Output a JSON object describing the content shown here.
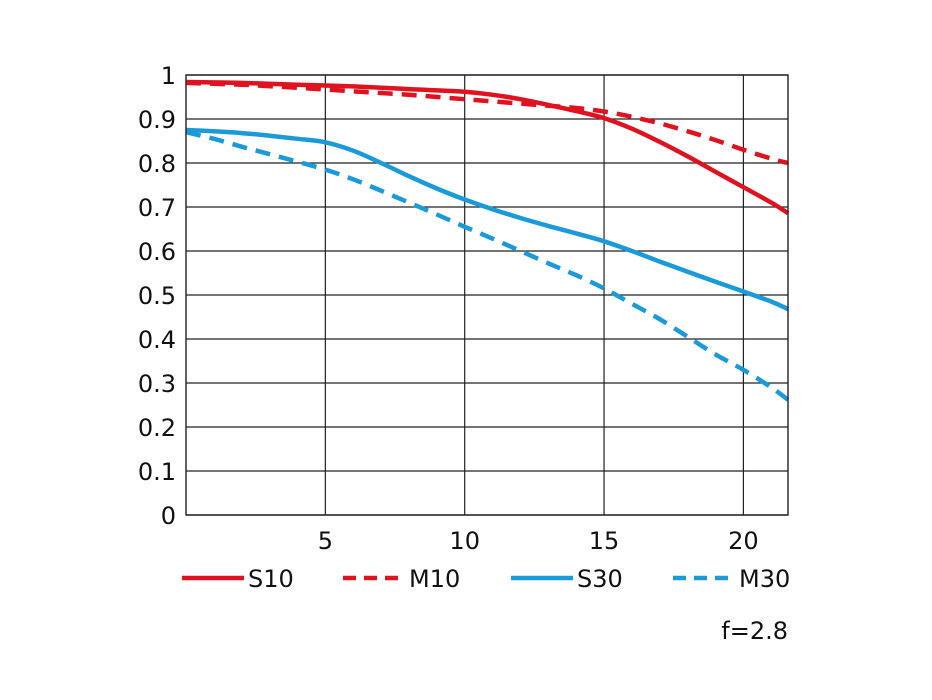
{
  "chart_data": {
    "type": "line",
    "title": "",
    "xlabel": "",
    "ylabel": "",
    "xlim": [
      0,
      21.6
    ],
    "ylim": [
      0,
      1
    ],
    "x_ticks": [
      5,
      10,
      15,
      20
    ],
    "x_tick_labels": [
      "5",
      "10",
      "15",
      "20"
    ],
    "y_ticks": [
      0,
      0.1,
      0.2,
      0.3,
      0.4,
      0.5,
      0.6,
      0.7,
      0.8,
      0.9,
      1
    ],
    "y_tick_labels": [
      "0",
      "0.1",
      "0.2",
      "0.3",
      "0.4",
      "0.5",
      "0.6",
      "0.7",
      "0.8",
      "0.9",
      "1"
    ],
    "grid": true,
    "legend_position": "bottom",
    "annotation": "f=2.8",
    "series": [
      {
        "name": "S10",
        "color": "#e0121f",
        "style": "solid",
        "x": [
          0,
          2,
          4,
          6,
          8,
          10,
          11,
          12,
          13,
          14,
          15,
          16,
          17,
          18,
          19,
          20,
          21,
          21.6
        ],
        "y": [
          0.984,
          0.982,
          0.978,
          0.974,
          0.968,
          0.962,
          0.955,
          0.945,
          0.932,
          0.918,
          0.902,
          0.878,
          0.848,
          0.815,
          0.78,
          0.745,
          0.71,
          0.686
        ]
      },
      {
        "name": "M10",
        "color": "#e0121f",
        "style": "dashed",
        "x": [
          0,
          2,
          4,
          6,
          8,
          10,
          12,
          14,
          15,
          16,
          17,
          18,
          19,
          20,
          21,
          21.6
        ],
        "y": [
          0.982,
          0.978,
          0.971,
          0.963,
          0.955,
          0.945,
          0.935,
          0.925,
          0.917,
          0.905,
          0.89,
          0.872,
          0.852,
          0.83,
          0.81,
          0.8
        ]
      },
      {
        "name": "S30",
        "color": "#1a9ad9",
        "style": "solid",
        "x": [
          0,
          1,
          2,
          3,
          4,
          5,
          6,
          7,
          8,
          9,
          10,
          11,
          12,
          13,
          14,
          15,
          16,
          17,
          18,
          19,
          20,
          21,
          21.6
        ],
        "y": [
          0.875,
          0.872,
          0.868,
          0.862,
          0.855,
          0.847,
          0.828,
          0.8,
          0.77,
          0.742,
          0.717,
          0.695,
          0.675,
          0.657,
          0.64,
          0.622,
          0.6,
          0.576,
          0.553,
          0.53,
          0.508,
          0.485,
          0.468
        ]
      },
      {
        "name": "M30",
        "color": "#1a9ad9",
        "style": "dashed",
        "x": [
          0,
          1,
          2,
          3,
          4,
          5,
          6,
          7,
          8,
          9,
          10,
          11,
          12,
          13,
          14,
          15,
          16,
          17,
          18,
          19,
          20,
          21,
          21.6
        ],
        "y": [
          0.87,
          0.855,
          0.837,
          0.82,
          0.803,
          0.785,
          0.763,
          0.737,
          0.71,
          0.683,
          0.655,
          0.628,
          0.6,
          0.572,
          0.545,
          0.515,
          0.48,
          0.445,
          0.405,
          0.365,
          0.33,
          0.29,
          0.262
        ]
      }
    ]
  }
}
